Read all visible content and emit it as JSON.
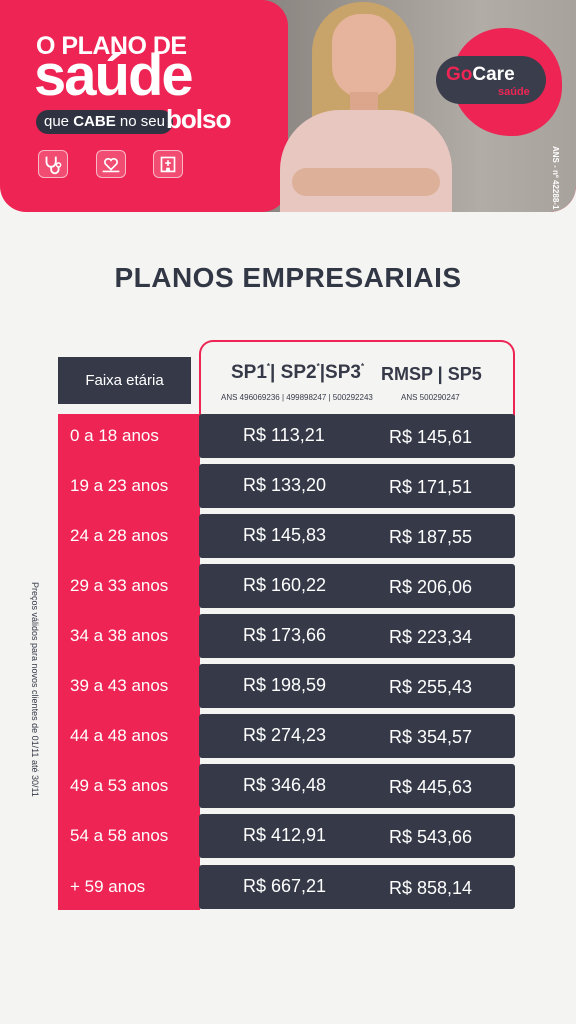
{
  "banner": {
    "title_line1": "O PLANO DE",
    "title_line2": "saúde",
    "tagline_pre": "que ",
    "tagline_bold": "CABE",
    "tagline_post": " no seu",
    "tagline_end": "bolso",
    "logo_go": "Go",
    "logo_care": "Care",
    "logo_sub": "saúde",
    "ans_vertical": "ANS - nº 42288-1",
    "icons": [
      "stethoscope-icon",
      "heart-hands-icon",
      "hospital-icon"
    ]
  },
  "section_title": "PLANOS EMPRESARIAIS",
  "table": {
    "age_header": "Faixa etária",
    "plan_a": {
      "p1": "SP1",
      "p2": "SP2",
      "p3": "SP3",
      "ans": "ANS 496069236 | 499898247 | 500292243"
    },
    "plan_b": {
      "name": "RMSP | SP5",
      "ans": "ANS 500290247"
    },
    "rows": [
      {
        "age": "0 a 18 anos",
        "a": "R$ 113,21",
        "b": "R$ 145,61"
      },
      {
        "age": "19 a 23 anos",
        "a": "R$ 133,20",
        "b": "R$ 171,51"
      },
      {
        "age": "24 a 28 anos",
        "a": "R$ 145,83",
        "b": "R$ 187,55"
      },
      {
        "age": "29 a 33 anos",
        "a": "R$ 160,22",
        "b": "R$ 206,06"
      },
      {
        "age": "34 a 38 anos",
        "a": "R$ 173,66",
        "b": "R$ 223,34"
      },
      {
        "age": "39 a 43 anos",
        "a": "R$ 198,59",
        "b": "R$ 255,43"
      },
      {
        "age": "44 a 48 anos",
        "a": "R$ 274,23",
        "b": "R$ 354,57"
      },
      {
        "age": "49 a 53 anos",
        "a": "R$ 346,48",
        "b": "R$ 445,63"
      },
      {
        "age": "54 a 58 anos",
        "a": "R$ 412,91",
        "b": "R$ 543,66"
      },
      {
        "age": "+ 59 anos",
        "a": "R$ 667,21",
        "b": "R$ 858,14"
      }
    ]
  },
  "footnote": "Preços válidos para novos clientes de 01/11 até 30/11",
  "colors": {
    "brand_pink": "#ee2554",
    "dark": "#363a48",
    "background": "#f4f4f2"
  }
}
